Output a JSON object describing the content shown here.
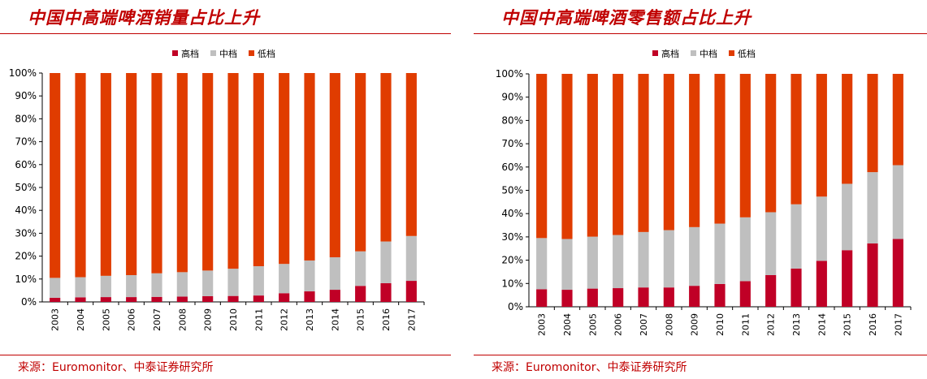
{
  "colors": {
    "high": "#c00026",
    "mid": "#bfbfbf",
    "low": "#e03c00",
    "accent": "#c00000"
  },
  "panels": [
    {
      "title": "中国中高端啤酒销量占比上升",
      "source": "来源：Euromonitor、中泰证券研究所",
      "chart_data": {
        "type": "bar",
        "stacked": true,
        "categories": [
          "2003",
          "2004",
          "2005",
          "2006",
          "2007",
          "2008",
          "2009",
          "2010",
          "2011",
          "2012",
          "2013",
          "2014",
          "2015",
          "2016",
          "2017"
        ],
        "series": [
          {
            "name": "高档",
            "values": [
              1.8,
              2.0,
              2.1,
              2.1,
              2.2,
              2.3,
              2.5,
              2.6,
              2.8,
              3.8,
              4.6,
              5.3,
              7.0,
              8.2,
              9.2
            ]
          },
          {
            "name": "中档",
            "values": [
              8.7,
              8.8,
              9.3,
              9.6,
              10.3,
              10.7,
              11.2,
              11.9,
              12.8,
              12.8,
              13.5,
              14.2,
              15.1,
              18.2,
              19.6
            ]
          },
          {
            "name": "低档",
            "values": [
              89.5,
              89.2,
              88.6,
              88.3,
              87.5,
              87.0,
              86.3,
              85.5,
              84.4,
              83.4,
              81.9,
              80.5,
              77.9,
              73.6,
              71.2
            ]
          }
        ],
        "y_ticks": [
          "0%",
          "10%",
          "20%",
          "30%",
          "40%",
          "50%",
          "60%",
          "70%",
          "80%",
          "90%",
          "100%"
        ],
        "ylim": [
          0,
          100
        ],
        "legend_position": "top-center",
        "grid": false
      }
    },
    {
      "title": "中国中高端啤酒零售额占比上升",
      "source": "来源：Euromonitor、中泰证券研究所",
      "chart_data": {
        "type": "bar",
        "stacked": true,
        "categories": [
          "2003",
          "2004",
          "2005",
          "2006",
          "2007",
          "2008",
          "2009",
          "2010",
          "2011",
          "2012",
          "2013",
          "2014",
          "2015",
          "2016",
          "2017"
        ],
        "series": [
          {
            "name": "高档",
            "values": [
              7.5,
              7.3,
              7.8,
              8.0,
              8.3,
              8.3,
              9.0,
              9.8,
              11.0,
              13.6,
              16.4,
              19.7,
              24.3,
              27.2,
              29.1
            ]
          },
          {
            "name": "中档",
            "values": [
              22.0,
              21.8,
              22.3,
              22.8,
              23.8,
              24.6,
              25.2,
              25.9,
              27.4,
              27.0,
              27.6,
              27.6,
              28.5,
              30.6,
              31.7
            ]
          },
          {
            "name": "低档",
            "values": [
              70.5,
              70.9,
              69.9,
              69.2,
              67.9,
              67.1,
              65.8,
              64.3,
              61.6,
              59.4,
              56.0,
              52.7,
              47.2,
              42.2,
              39.2
            ]
          }
        ],
        "y_ticks": [
          "0%",
          "10%",
          "20%",
          "30%",
          "40%",
          "50%",
          "60%",
          "70%",
          "80%",
          "90%",
          "100%"
        ],
        "ylim": [
          0,
          100
        ],
        "legend_position": "top-center",
        "grid": false
      }
    }
  ]
}
